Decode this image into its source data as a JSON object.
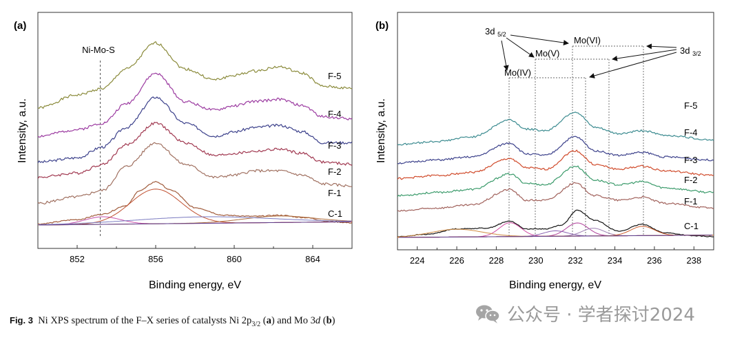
{
  "chart_data": [
    {
      "panel_label": "(a)",
      "type": "line",
      "xlabel": "Binding energy, eV",
      "ylabel": "Intensity, a.u.",
      "xlim": [
        850,
        866
      ],
      "x_ticks": [
        852,
        856,
        860,
        864
      ],
      "grid": false,
      "annotations": [
        {
          "text": "Ni-Mo-S",
          "x": 853.3
        }
      ],
      "series": [
        {
          "name": "F-5",
          "color": "#8a8a3a",
          "points": [
            [
              850,
              5.4
            ],
            [
              852,
              6.0
            ],
            [
              853.3,
              6.3
            ],
            [
              854.5,
              7.2
            ],
            [
              856,
              8.4
            ],
            [
              857.5,
              7.2
            ],
            [
              859,
              6.7
            ],
            [
              860,
              6.9
            ],
            [
              861,
              7.1
            ],
            [
              862.3,
              7.3
            ],
            [
              863.5,
              7.0
            ],
            [
              864.5,
              6.4
            ],
            [
              866,
              6.3
            ]
          ]
        },
        {
          "name": "F-4",
          "color": "#9b3aa0",
          "points": [
            [
              850,
              4.1
            ],
            [
              852,
              4.4
            ],
            [
              853.3,
              4.7
            ],
            [
              854.5,
              5.6
            ],
            [
              856,
              7.0
            ],
            [
              857.5,
              5.7
            ],
            [
              859,
              5.3
            ],
            [
              860,
              5.5
            ],
            [
              861,
              5.7
            ],
            [
              862.3,
              5.8
            ],
            [
              863.5,
              5.5
            ],
            [
              864.5,
              5.0
            ],
            [
              866,
              4.9
            ]
          ]
        },
        {
          "name": "F-3",
          "color": "#3a3f8a",
          "points": [
            [
              850,
              2.9
            ],
            [
              852,
              3.1
            ],
            [
              853.3,
              3.6
            ],
            [
              854.5,
              4.5
            ],
            [
              856,
              5.9
            ],
            [
              857.5,
              4.7
            ],
            [
              859,
              4.1
            ],
            [
              860,
              4.3
            ],
            [
              861,
              4.5
            ],
            [
              862.3,
              4.6
            ],
            [
              863.5,
              4.3
            ],
            [
              864.5,
              3.8
            ],
            [
              866,
              3.8
            ]
          ]
        },
        {
          "name": "F-2",
          "color": "#a0374f",
          "points": [
            [
              850,
              2.2
            ],
            [
              852,
              2.4
            ],
            [
              853.3,
              2.8
            ],
            [
              854.5,
              3.7
            ],
            [
              856,
              4.7
            ],
            [
              857.5,
              3.8
            ],
            [
              859,
              3.2
            ],
            [
              860,
              3.3
            ],
            [
              861,
              3.4
            ],
            [
              862.3,
              3.5
            ],
            [
              863.5,
              3.3
            ],
            [
              864.5,
              2.9
            ],
            [
              866,
              2.8
            ]
          ]
        },
        {
          "name": "F-1",
          "color": "#a07060",
          "points": [
            [
              850,
              1.0
            ],
            [
              852,
              1.3
            ],
            [
              853.3,
              1.6
            ],
            [
              854.5,
              2.7
            ],
            [
              856,
              3.8
            ],
            [
              857.5,
              2.8
            ],
            [
              859,
              2.2
            ],
            [
              860,
              2.3
            ],
            [
              861,
              2.5
            ],
            [
              862.3,
              2.5
            ],
            [
              863.5,
              2.3
            ],
            [
              864.5,
              1.9
            ],
            [
              866,
              1.8
            ]
          ]
        },
        {
          "name": "C-1",
          "color": "#a05a3a",
          "points": [
            [
              850,
              0.05
            ],
            [
              852,
              0.25
            ],
            [
              853.3,
              0.5
            ],
            [
              854.5,
              0.9
            ],
            [
              855.2,
              1.6
            ],
            [
              856,
              2.0
            ],
            [
              856.8,
              1.6
            ],
            [
              858,
              0.8
            ],
            [
              859.5,
              0.45
            ],
            [
              861,
              0.4
            ],
            [
              862.3,
              0.45
            ],
            [
              863.5,
              0.35
            ],
            [
              865,
              0.15
            ],
            [
              866,
              0.1
            ]
          ]
        }
      ]
    },
    {
      "panel_label": "(b)",
      "type": "line",
      "xlabel": "Binding energy, eV",
      "ylabel": "Intensity, a.u.",
      "xlim": [
        223,
        239
      ],
      "x_ticks": [
        224,
        226,
        228,
        230,
        232,
        234,
        236,
        238
      ],
      "grid": false,
      "annotations": [
        {
          "text": "3d5/2"
        },
        {
          "text": "3d3/2"
        },
        {
          "text": "Mo(VI)",
          "x": [
            232.0,
            235.4
          ]
        },
        {
          "text": "Mo(V)",
          "x": [
            230.0,
            233.7
          ]
        },
        {
          "text": "Mo(IV)",
          "x": [
            228.8,
            232.6
          ]
        }
      ],
      "series": [
        {
          "name": "F-5",
          "color": "#3a8a8f",
          "points": [
            [
              223,
              6.0
            ],
            [
              225,
              6.2
            ],
            [
              226.8,
              6.5
            ],
            [
              228.7,
              7.6
            ],
            [
              229.5,
              7.0
            ],
            [
              230.5,
              6.9
            ],
            [
              232,
              8.1
            ],
            [
              233,
              7.1
            ],
            [
              234.2,
              6.7
            ],
            [
              235.4,
              6.9
            ],
            [
              236.5,
              6.6
            ],
            [
              239,
              6.3
            ]
          ]
        },
        {
          "name": "F-4",
          "color": "#3a3f8a",
          "points": [
            [
              223,
              4.8
            ],
            [
              225,
              5.0
            ],
            [
              226.8,
              5.2
            ],
            [
              228.7,
              6.1
            ],
            [
              229.5,
              5.4
            ],
            [
              230.5,
              5.3
            ],
            [
              232,
              6.5
            ],
            [
              233,
              5.6
            ],
            [
              234.2,
              5.3
            ],
            [
              235.4,
              5.5
            ],
            [
              236.5,
              5.2
            ],
            [
              239,
              5.0
            ]
          ]
        },
        {
          "name": "F-3",
          "color": "#d04a2a",
          "points": [
            [
              223,
              3.8
            ],
            [
              225,
              4.0
            ],
            [
              226.8,
              4.2
            ],
            [
              228.7,
              5.1
            ],
            [
              229.5,
              4.5
            ],
            [
              230.5,
              4.4
            ],
            [
              232,
              5.6
            ],
            [
              233,
              4.7
            ],
            [
              234.2,
              4.4
            ],
            [
              235.4,
              4.6
            ],
            [
              236.5,
              4.3
            ],
            [
              239,
              4.0
            ]
          ]
        },
        {
          "name": "F-2",
          "color": "#3a9a6a",
          "points": [
            [
              223,
              2.7
            ],
            [
              225,
              2.9
            ],
            [
              226.8,
              3.1
            ],
            [
              228.7,
              4.1
            ],
            [
              229.5,
              3.5
            ],
            [
              230.5,
              3.4
            ],
            [
              232,
              4.6
            ],
            [
              233,
              3.7
            ],
            [
              234.2,
              3.4
            ],
            [
              235.4,
              3.6
            ],
            [
              236.5,
              3.2
            ],
            [
              239,
              2.9
            ]
          ]
        },
        {
          "name": "F-1",
          "color": "#a0605a",
          "points": [
            [
              223,
              1.7
            ],
            [
              225,
              1.9
            ],
            [
              226.8,
              2.1
            ],
            [
              228.7,
              3.1
            ],
            [
              229.5,
              2.4
            ],
            [
              230.5,
              2.4
            ],
            [
              232,
              3.5
            ],
            [
              233,
              2.7
            ],
            [
              234.2,
              2.4
            ],
            [
              235.4,
              2.6
            ],
            [
              236.5,
              2.2
            ],
            [
              239,
              1.9
            ]
          ]
        },
        {
          "name": "C-1",
          "color": "#111111",
          "points": [
            [
              223,
              0.05
            ],
            [
              224.5,
              0.2
            ],
            [
              226,
              0.55
            ],
            [
              227.5,
              0.6
            ],
            [
              228.7,
              1.05
            ],
            [
              229.5,
              0.55
            ],
            [
              230.5,
              0.55
            ],
            [
              231.3,
              0.8
            ],
            [
              232.1,
              1.75
            ],
            [
              233,
              1.1
            ],
            [
              234.2,
              0.4
            ],
            [
              235.4,
              0.85
            ],
            [
              236.5,
              0.3
            ],
            [
              238,
              0.1
            ],
            [
              239,
              0.05
            ]
          ]
        }
      ]
    }
  ],
  "series_labels_a": [
    "F-5",
    "F-4",
    "F-3",
    "F-2",
    "F-1",
    "C-1"
  ],
  "series_labels_b": [
    "F-5",
    "F-4",
    "F-3",
    "F-2",
    "F-1",
    "C-1"
  ],
  "caption": {
    "label": "Fig. 3",
    "text": "Ni XPS spectrum of the F–X series of catalysts Ni 2p",
    "subscript": "3/2",
    "part_a": "a",
    "middle": " and Mo 3",
    "italic_d": "d",
    "part_b": "b"
  },
  "watermark": {
    "text": "公众号 · 学者探讨2024",
    "icon": "wechat-icon"
  }
}
